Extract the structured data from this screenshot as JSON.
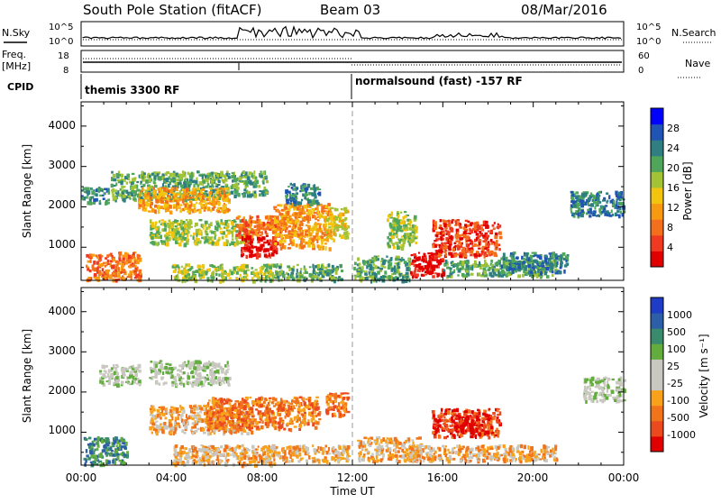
{
  "header": {
    "title": "South Pole Station (fitACF)",
    "beam": "Beam 03",
    "date": "08/Mar/2016"
  },
  "noise_panel": {
    "left_label": "N.Sky",
    "right_label": "N.Search",
    "left_ticks": [
      "10^5",
      "10^0"
    ],
    "right_ticks": [
      "10^5",
      "10^0"
    ]
  },
  "freq_panel": {
    "left_label_1": "Freq.",
    "left_label_2": "[MHz]",
    "right_label": "Nave",
    "left_ticks": [
      "18",
      "8"
    ],
    "right_ticks": [
      "60",
      "0"
    ]
  },
  "cpid": {
    "label": "CPID",
    "segments": [
      {
        "text": "themis 3300 RF",
        "start_hour": 0
      },
      {
        "text": "normalsound (fast) -157 RF",
        "start_hour": 12
      }
    ]
  },
  "xaxis": {
    "label": "Time UT",
    "ticks": [
      "00:00",
      "04:00",
      "08:00",
      "12:00",
      "16:00",
      "20:00",
      "00:00"
    ]
  },
  "power_panel": {
    "ylabel": "Slant Range [km]",
    "yticks": [
      "1000",
      "2000",
      "3000",
      "4000"
    ],
    "cbar_label": "Power [dB]",
    "cbar_ticks": [
      "4",
      "8",
      "12",
      "16",
      "20",
      "24",
      "28"
    ],
    "colors": [
      "#0000ff",
      "#1f54b4",
      "#2f7f82",
      "#4fa65a",
      "#a3c337",
      "#f3c40e",
      "#f79a12",
      "#f36f1c",
      "#ef3a21",
      "#e00000"
    ]
  },
  "velocity_panel": {
    "ylabel": "Slant Range [km]",
    "yticks": [
      "1000",
      "2000",
      "3000",
      "4000"
    ],
    "cbar_label": "Velocity [m s⁻¹]",
    "cbar_ticks": [
      "1000",
      "500",
      "100",
      "25",
      "-25",
      "-100",
      "-500",
      "-1000"
    ],
    "colors": [
      "#1f3cc6",
      "#2c5fa8",
      "#3a8b6e",
      "#63ad3e",
      "#c8c8c0",
      "#c8c8c0",
      "#f7a21a",
      "#f1741a",
      "#eb4a1f",
      "#e00000"
    ]
  },
  "chart_data": {
    "type": "heatmap",
    "x_range_hours": [
      0,
      24
    ],
    "y_range_km": [
      180,
      4600
    ],
    "power_patches": [
      {
        "t0": 0.2,
        "t1": 2.6,
        "r0": 200,
        "r1": 900,
        "level": 7
      },
      {
        "t0": 0.0,
        "t1": 1.2,
        "r0": 2100,
        "r1": 2500,
        "level": 2
      },
      {
        "t0": 1.3,
        "t1": 6.5,
        "r0": 2200,
        "r1": 2900,
        "level": 3
      },
      {
        "t0": 2.5,
        "t1": 6.5,
        "r0": 1900,
        "r1": 2500,
        "level": 6
      },
      {
        "t0": 3.0,
        "t1": 7.5,
        "r0": 1100,
        "r1": 1700,
        "level": 4
      },
      {
        "t0": 6.8,
        "t1": 9.5,
        "r0": 1300,
        "r1": 1800,
        "level": 7
      },
      {
        "t0": 7.0,
        "t1": 8.6,
        "r0": 800,
        "r1": 1300,
        "level": 9
      },
      {
        "t0": 8.5,
        "t1": 11.0,
        "r0": 1000,
        "r1": 2100,
        "level": 6
      },
      {
        "t0": 6.6,
        "t1": 8.2,
        "r0": 2300,
        "r1": 2900,
        "level": 3
      },
      {
        "t0": 9.0,
        "t1": 10.5,
        "r0": 2100,
        "r1": 2600,
        "level": 2
      },
      {
        "t0": 10.8,
        "t1": 11.8,
        "r0": 1200,
        "r1": 2000,
        "level": 5
      },
      {
        "t0": 4.0,
        "t1": 8.5,
        "r0": 200,
        "r1": 600,
        "level": 4
      },
      {
        "t0": 8.5,
        "t1": 11.5,
        "r0": 200,
        "r1": 600,
        "level": 3
      },
      {
        "t0": 12.0,
        "t1": 14.5,
        "r0": 200,
        "r1": 800,
        "level": 3
      },
      {
        "t0": 14.5,
        "t1": 16.0,
        "r0": 300,
        "r1": 900,
        "level": 9
      },
      {
        "t0": 15.5,
        "t1": 18.5,
        "r0": 800,
        "r1": 1700,
        "level": 8
      },
      {
        "t0": 16.0,
        "t1": 21.0,
        "r0": 300,
        "r1": 700,
        "level": 3
      },
      {
        "t0": 18.5,
        "t1": 21.5,
        "r0": 400,
        "r1": 900,
        "level": 2
      },
      {
        "t0": 21.6,
        "t1": 24.0,
        "r0": 1800,
        "r1": 2400,
        "level": 2
      },
      {
        "t0": 13.5,
        "t1": 14.8,
        "r0": 1000,
        "r1": 1900,
        "level": 4
      }
    ],
    "velocity_patches": [
      {
        "t0": 0.1,
        "t1": 2.0,
        "r0": 200,
        "r1": 900,
        "level": 2
      },
      {
        "t0": 0.8,
        "t1": 2.6,
        "r0": 2200,
        "r1": 2700,
        "level": 4
      },
      {
        "t0": 3.0,
        "t1": 6.5,
        "r0": 2200,
        "r1": 2800,
        "level": 4
      },
      {
        "t0": 3.0,
        "t1": 7.5,
        "r0": 1000,
        "r1": 1700,
        "level": 6
      },
      {
        "t0": 5.5,
        "t1": 10.5,
        "r0": 1100,
        "r1": 1900,
        "level": 7
      },
      {
        "t0": 4.0,
        "t1": 8.5,
        "r0": 200,
        "r1": 700,
        "level": 6
      },
      {
        "t0": 8.0,
        "t1": 11.8,
        "r0": 300,
        "r1": 700,
        "level": 6
      },
      {
        "t0": 10.8,
        "t1": 11.8,
        "r0": 1400,
        "r1": 2000,
        "level": 7
      },
      {
        "t0": 12.2,
        "t1": 15.0,
        "r0": 300,
        "r1": 900,
        "level": 6
      },
      {
        "t0": 15.5,
        "t1": 18.5,
        "r0": 900,
        "r1": 1600,
        "level": 8
      },
      {
        "t0": 16.5,
        "t1": 18.0,
        "r0": 1000,
        "r1": 1500,
        "level": 9
      },
      {
        "t0": 14.5,
        "t1": 21.0,
        "r0": 300,
        "r1": 700,
        "level": 6
      },
      {
        "t0": 22.2,
        "t1": 24.0,
        "r0": 1800,
        "r1": 2400,
        "level": 4
      }
    ]
  }
}
